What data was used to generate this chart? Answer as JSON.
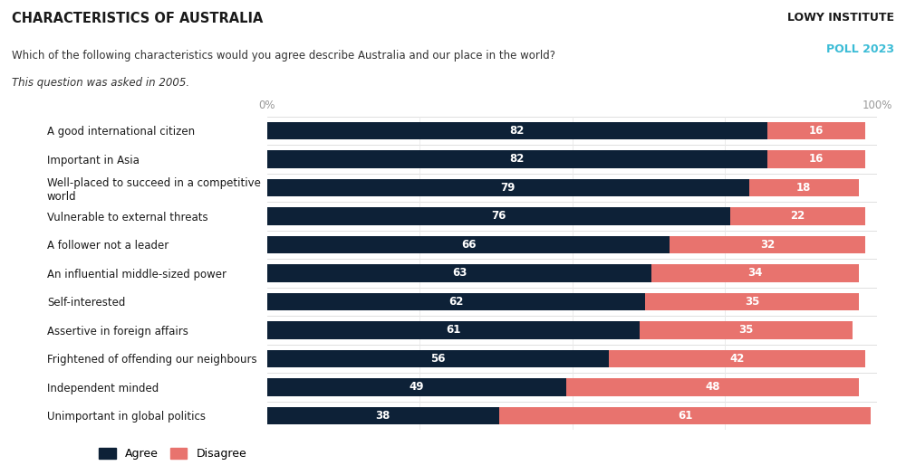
{
  "title": "CHARACTERISTICS OF AUSTRALIA",
  "subtitle": "Which of the following characteristics would you agree describe Australia and our place in the world?",
  "subtitle2": "This question was asked in 2005.",
  "branding_line1": "LOWY INSTITUTE",
  "branding_line2": "POLL 2023",
  "categories": [
    "A good international citizen",
    "Important in Asia",
    "Well-placed to succeed in a competitive\nworld",
    "Vulnerable to external threats",
    "A follower not a leader",
    "An influential middle-sized power",
    "Self-interested",
    "Assertive in foreign affairs",
    "Frightened of offending our neighbours",
    "Independent minded",
    "Unimportant in global politics"
  ],
  "agree": [
    82,
    82,
    79,
    76,
    66,
    63,
    62,
    61,
    56,
    49,
    38
  ],
  "disagree": [
    16,
    16,
    18,
    22,
    32,
    34,
    35,
    35,
    42,
    48,
    61
  ],
  "agree_color": "#0d2137",
  "disagree_color": "#e8736e",
  "background_color": "#ffffff",
  "label_color_white": "#ffffff",
  "axis_label_color": "#999999",
  "title_color": "#1a1a1a",
  "subtitle_color": "#333333",
  "branding_color1": "#1a1a1a",
  "branding_color2": "#3bbcd6",
  "bar_height": 0.62,
  "xlim": [
    0,
    100
  ],
  "legend_agree_label": "Agree",
  "legend_disagree_label": "Disagree"
}
